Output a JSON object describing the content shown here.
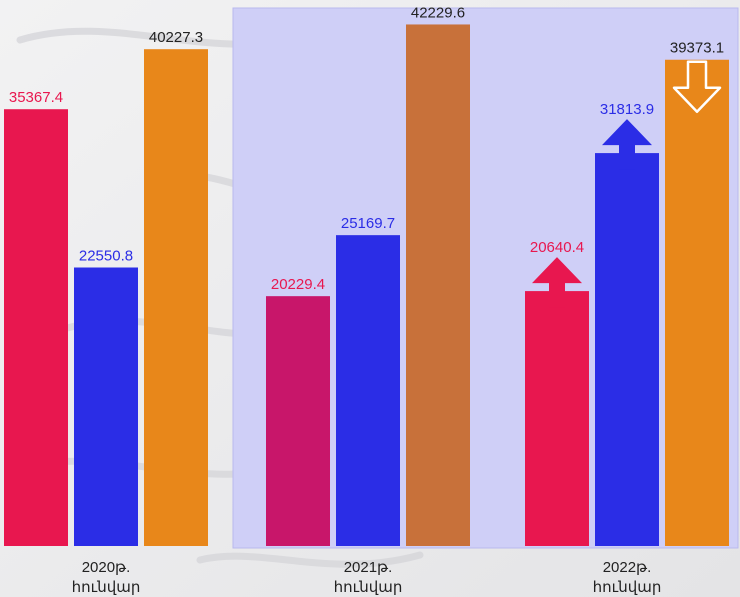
{
  "chart_data": {
    "type": "bar",
    "title": "",
    "xlabel": "",
    "ylabel": "",
    "ylim": [
      0,
      45000
    ],
    "grid": false,
    "legend": "none",
    "groups": [
      {
        "label_line1": "2020թ.",
        "label_line2": "հունվար",
        "bars": [
          {
            "value": 35367.4,
            "label": "35367.4",
            "color": "#e8174f",
            "label_color": "#e8174f",
            "arrow": ""
          },
          {
            "value": 22550.8,
            "label": "22550.8",
            "color": "#2b2de6",
            "label_color": "#2b2de6",
            "arrow": ""
          },
          {
            "value": 40227.3,
            "label": "40227.3",
            "color": "#e8871a",
            "label_color": "#222222",
            "arrow": ""
          }
        ]
      },
      {
        "label_line1": "2021թ.",
        "label_line2": "հունվար",
        "bars": [
          {
            "value": 20229.4,
            "label": "20229.4",
            "color": "#c8166a",
            "label_color": "#e8174f",
            "arrow": ""
          },
          {
            "value": 25169.7,
            "label": "25169.7",
            "color": "#2b2de6",
            "label_color": "#2b2de6",
            "arrow": ""
          },
          {
            "value": 42229.6,
            "label": "42229.6",
            "color": "#c8713a",
            "label_color": "#222222",
            "arrow": ""
          }
        ]
      },
      {
        "label_line1": "2022թ.",
        "label_line2": "հունվար",
        "bars": [
          {
            "value": 20640.4,
            "label": "20640.4",
            "color": "#e8174f",
            "label_color": "#e8174f",
            "arrow": "up-solid"
          },
          {
            "value": 31813.9,
            "label": "31813.9",
            "color": "#2b2de6",
            "label_color": "#2b2de6",
            "arrow": "up-solid"
          },
          {
            "value": 39373.1,
            "label": "39373.1",
            "color": "#e8871a",
            "label_color": "#222222",
            "arrow": "down-outline"
          }
        ]
      }
    ],
    "highlight_panel_color": "#cfcff7"
  }
}
